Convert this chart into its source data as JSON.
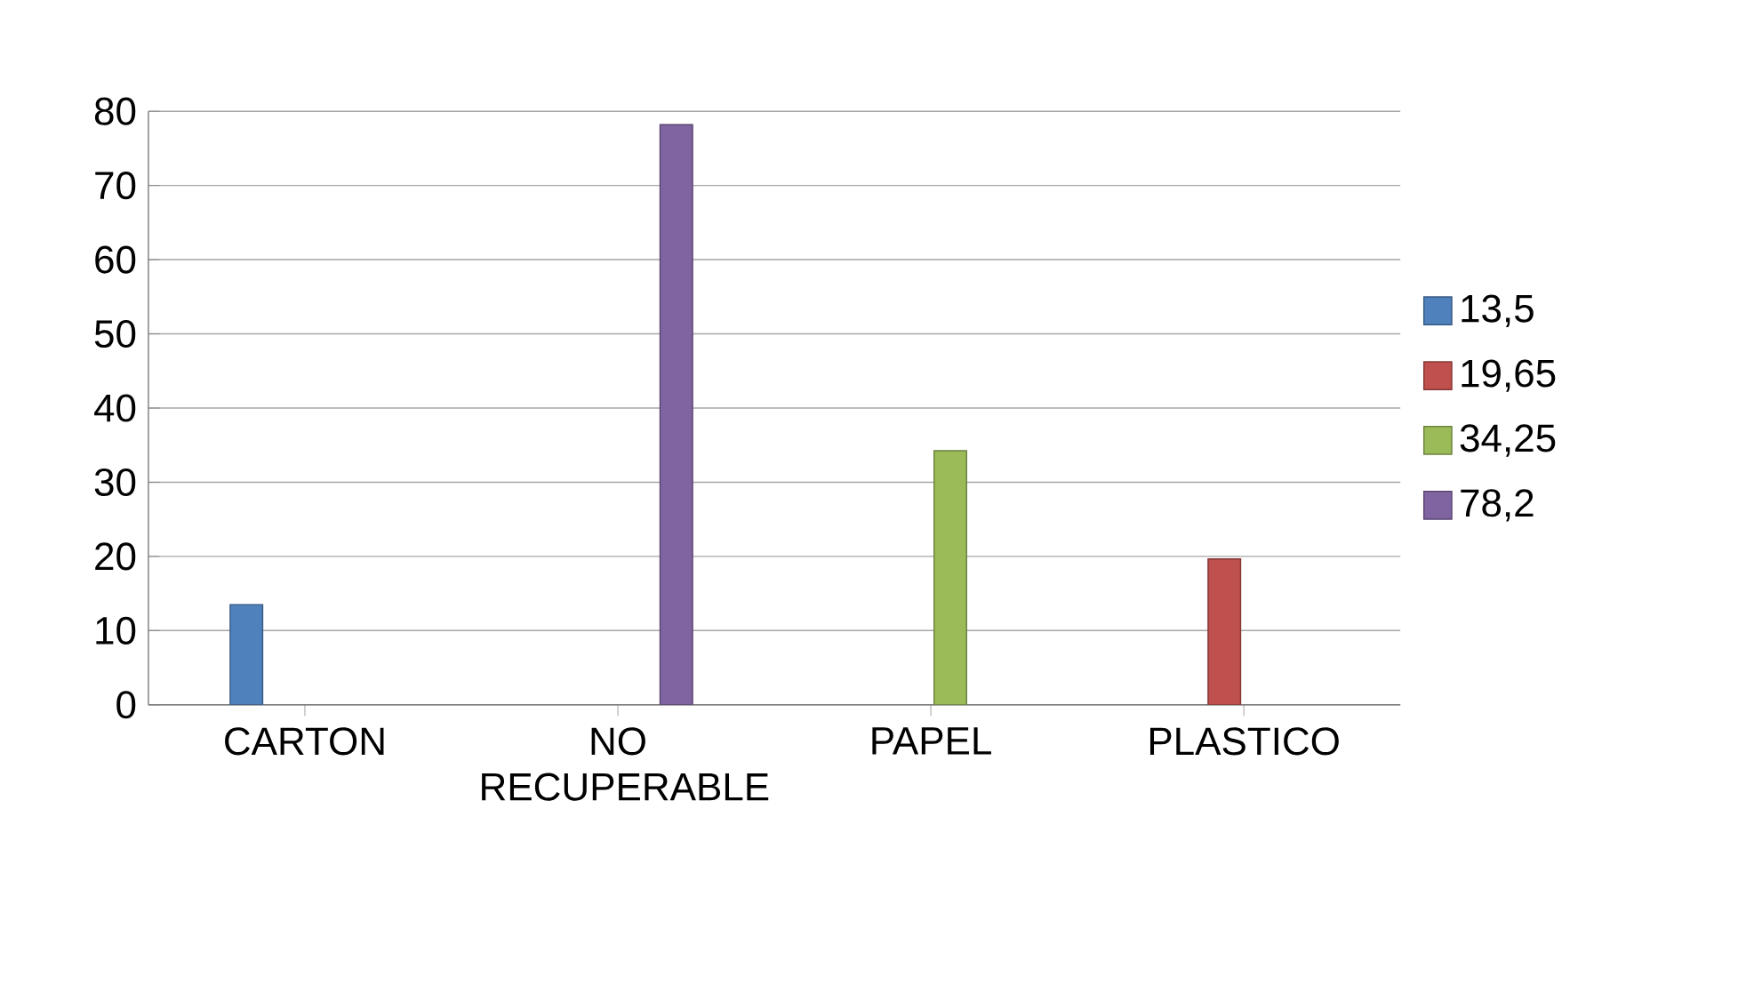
{
  "chart_data": {
    "type": "bar",
    "categories": [
      "CARTON",
      "NO RECUPERABLE",
      "PAPEL",
      "PLASTICO"
    ],
    "series": [
      {
        "name": "13,5",
        "color": "#4f81bd",
        "values": [
          13.5,
          null,
          null,
          null
        ]
      },
      {
        "name": "19,65",
        "color": "#c0504d",
        "values": [
          null,
          null,
          null,
          19.65
        ]
      },
      {
        "name": "34,25",
        "color": "#9bbb59",
        "values": [
          null,
          null,
          34.25,
          null
        ]
      },
      {
        "name": "78,2",
        "color": "#8064a2",
        "values": [
          null,
          78.2,
          null,
          null
        ]
      }
    ],
    "ylim": [
      0,
      80
    ],
    "yticks": [
      0,
      10,
      20,
      30,
      40,
      50,
      60,
      70,
      80
    ],
    "grid": "y",
    "legend": "right"
  }
}
